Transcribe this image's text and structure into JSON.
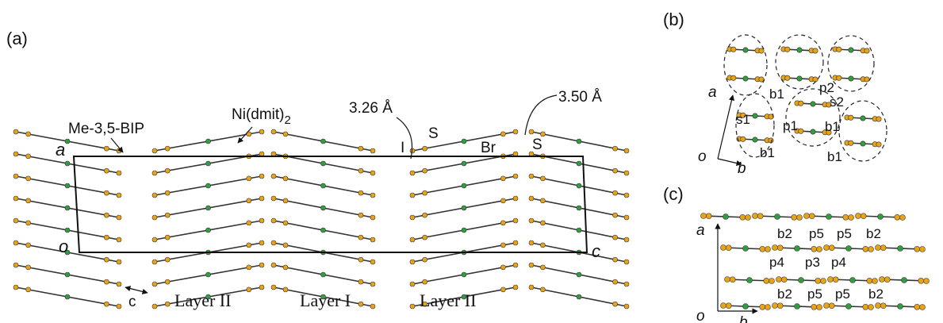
{
  "panel_a": {
    "label": "(a)",
    "cation": "Me-3,5-BIP",
    "anion": {
      "text": "Ni(dmit)",
      "subscript": "2"
    },
    "contacts": [
      "3.26 Å",
      "3.50 Å"
    ],
    "atoms": [
      "I",
      "S",
      "Br",
      "S"
    ],
    "axes": {
      "a": "a",
      "o": "o",
      "c": "c",
      "c_arrow": "c"
    },
    "layers": [
      "Layer II",
      "Layer I",
      "Layer II"
    ]
  },
  "panel_b": {
    "label": "(b)",
    "axes": {
      "a": "a",
      "o": "o",
      "b": "b"
    },
    "interactions": [
      "b1",
      "p2",
      "s2",
      "s1",
      "p1",
      "b1",
      "b1",
      "b1"
    ]
  },
  "panel_c": {
    "label": "(c)",
    "axes": {
      "a": "a",
      "o": "o",
      "b": "b"
    },
    "interactions": [
      "b2",
      "p5",
      "p5",
      "b2",
      "p4",
      "p3",
      "p4",
      "b2",
      "p5",
      "p5",
      "b2"
    ]
  }
}
